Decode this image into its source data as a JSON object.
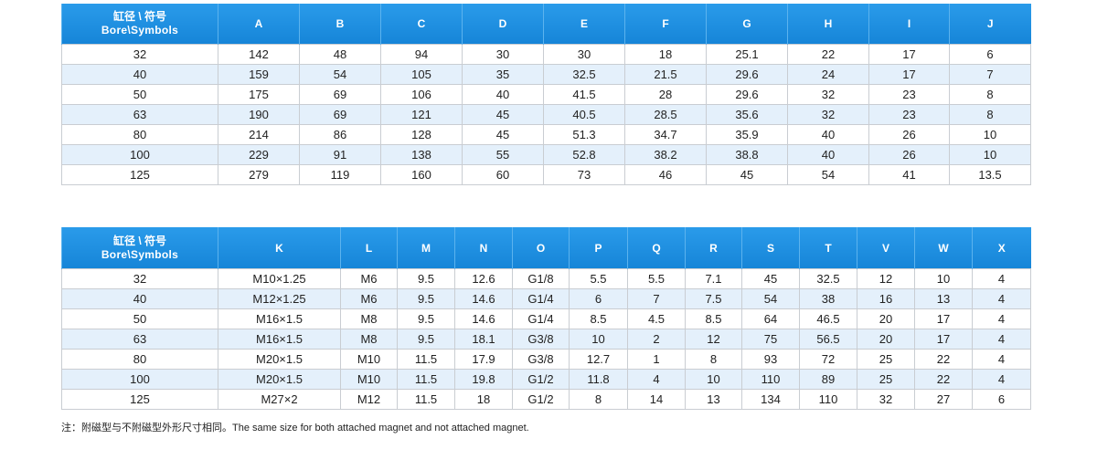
{
  "table1": {
    "corner": {
      "zh": "缸径 \\ 符号",
      "en": "Bore\\Symbols"
    },
    "columns": [
      "A",
      "B",
      "C",
      "D",
      "E",
      "F",
      "G",
      "H",
      "I",
      "J"
    ],
    "rows": [
      [
        32,
        142,
        48,
        94,
        30,
        30,
        18,
        25.1,
        22,
        17,
        6
      ],
      [
        40,
        159,
        54,
        105,
        35,
        32.5,
        21.5,
        29.6,
        24,
        17,
        7
      ],
      [
        50,
        175,
        69,
        106,
        40,
        41.5,
        28,
        29.6,
        32,
        23,
        8
      ],
      [
        63,
        190,
        69,
        121,
        45,
        40.5,
        28.5,
        35.6,
        32,
        23,
        8
      ],
      [
        80,
        214,
        86,
        128,
        45,
        51.3,
        34.7,
        35.9,
        40,
        26,
        10
      ],
      [
        100,
        229,
        91,
        138,
        55,
        52.8,
        38.2,
        38.8,
        40,
        26,
        10
      ],
      [
        125,
        279,
        119,
        160,
        60,
        73,
        46,
        45,
        54,
        41,
        13.5
      ]
    ]
  },
  "table2": {
    "corner": {
      "zh": "缸径 \\ 符号",
      "en": "Bore\\Symbols"
    },
    "columns": [
      "K",
      "L",
      "M",
      "N",
      "O",
      "P",
      "Q",
      "R",
      "S",
      "T",
      "V",
      "W",
      "X"
    ],
    "rows": [
      [
        32,
        "M10×1.25",
        "M6",
        9.5,
        12.6,
        "G1/8",
        5.5,
        5.5,
        7.1,
        45,
        32.5,
        12,
        10,
        4
      ],
      [
        40,
        "M12×1.25",
        "M6",
        9.5,
        14.6,
        "G1/4",
        6,
        7,
        7.5,
        54,
        38,
        16,
        13,
        4
      ],
      [
        50,
        "M16×1.5",
        "M8",
        9.5,
        14.6,
        "G1/4",
        8.5,
        4.5,
        8.5,
        64,
        46.5,
        20,
        17,
        4
      ],
      [
        63,
        "M16×1.5",
        "M8",
        9.5,
        18.1,
        "G3/8",
        10,
        2,
        12,
        75,
        56.5,
        20,
        17,
        4
      ],
      [
        80,
        "M20×1.5",
        "M10",
        11.5,
        17.9,
        "G3/8",
        12.7,
        1,
        8,
        93,
        72,
        25,
        22,
        4
      ],
      [
        100,
        "M20×1.5",
        "M10",
        11.5,
        19.8,
        "G1/2",
        11.8,
        4,
        10,
        110,
        89,
        25,
        22,
        4
      ],
      [
        125,
        "M27×2",
        "M12",
        11.5,
        18,
        "G1/2",
        8,
        14,
        13,
        134,
        110,
        32,
        27,
        6
      ]
    ]
  },
  "note": "注：附磁型与不附磁型外形尺寸相同。The same size for both attached magnet and not attached magnet."
}
